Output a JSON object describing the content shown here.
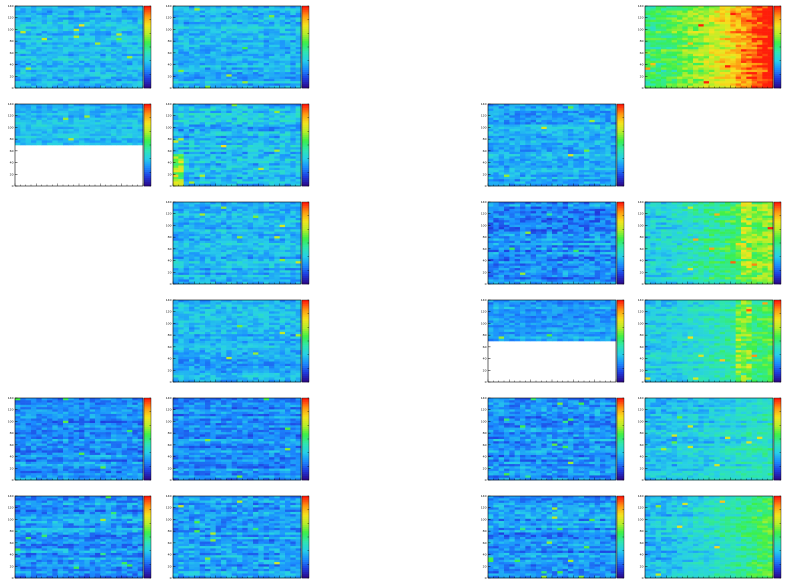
{
  "page": {
    "background": "#ffffff",
    "rows": 6,
    "cols": 5
  },
  "palette": {
    "stops": [
      "#2b0a8c",
      "#1f3de0",
      "#1a8cff",
      "#27cfe8",
      "#2ee6b0",
      "#3cf04a",
      "#b5ef2a",
      "#f5e31e",
      "#ff9a12",
      "#ff1e0a"
    ],
    "frame": "#000000",
    "empty_region": "#ffffff"
  },
  "chart_data": [
    {
      "id": "r0c0",
      "row": 0,
      "col": 0,
      "type": "heatmap",
      "nx": 24,
      "ny": 36,
      "ylim": [
        0,
        140
      ],
      "y_ticks": [
        0,
        20,
        40,
        60,
        80,
        100,
        120,
        140
      ],
      "intensity": {
        "base": 0.3,
        "spread": 0.1,
        "x_gradient": 0.0
      },
      "filled_y_fraction": 1.0,
      "seed": 3
    },
    {
      "id": "r0c1",
      "row": 0,
      "col": 1,
      "type": "heatmap",
      "nx": 24,
      "ny": 36,
      "ylim": [
        0,
        140
      ],
      "y_ticks": [
        0,
        20,
        40,
        60,
        80,
        100,
        120,
        140
      ],
      "intensity": {
        "base": 0.29,
        "spread": 0.1,
        "x_gradient": 0.0
      },
      "filled_y_fraction": 1.0,
      "seed": 7
    },
    {
      "id": "r0c4",
      "row": 0,
      "col": 4,
      "type": "heatmap",
      "nx": 24,
      "ny": 36,
      "ylim": [
        0,
        140
      ],
      "y_ticks": [
        0,
        20,
        40,
        60,
        80,
        100,
        120,
        140
      ],
      "intensity": {
        "base": 0.5,
        "spread": 0.12,
        "x_gradient": 0.55
      },
      "filled_y_fraction": 1.0,
      "seed": 11
    },
    {
      "id": "r1c0",
      "row": 1,
      "col": 0,
      "type": "heatmap",
      "nx": 24,
      "ny": 36,
      "ylim": [
        0,
        140
      ],
      "y_ticks": [
        0,
        20,
        40,
        60,
        80,
        100,
        120,
        140
      ],
      "intensity": {
        "base": 0.3,
        "spread": 0.08,
        "x_gradient": 0.0
      },
      "filled_y_fraction": 0.5,
      "seed": 13
    },
    {
      "id": "r1c1",
      "row": 1,
      "col": 1,
      "type": "heatmap",
      "nx": 24,
      "ny": 36,
      "ylim": [
        0,
        140
      ],
      "y_ticks": [
        0,
        20,
        40,
        60,
        80,
        100,
        120,
        140
      ],
      "intensity": {
        "base": 0.3,
        "spread": 0.12,
        "x_gradient": 0.0
      },
      "filled_y_fraction": 1.0,
      "hot_corner": "bottom-left",
      "seed": 17
    },
    {
      "id": "r1c3",
      "row": 1,
      "col": 3,
      "type": "heatmap",
      "nx": 24,
      "ny": 36,
      "ylim": [
        0,
        140
      ],
      "y_ticks": [
        0,
        20,
        40,
        60,
        80,
        100,
        120,
        140
      ],
      "intensity": {
        "base": 0.28,
        "spread": 0.1,
        "x_gradient": 0.0
      },
      "filled_y_fraction": 1.0,
      "seed": 19
    },
    {
      "id": "r2c1",
      "row": 2,
      "col": 1,
      "type": "heatmap",
      "nx": 24,
      "ny": 36,
      "ylim": [
        0,
        140
      ],
      "y_ticks": [
        0,
        20,
        40,
        60,
        80,
        100,
        120,
        140
      ],
      "intensity": {
        "base": 0.29,
        "spread": 0.1,
        "x_gradient": 0.0
      },
      "filled_y_fraction": 1.0,
      "seed": 23
    },
    {
      "id": "r2c3",
      "row": 2,
      "col": 3,
      "type": "heatmap",
      "nx": 24,
      "ny": 36,
      "ylim": [
        0,
        140
      ],
      "y_ticks": [
        0,
        20,
        40,
        60,
        80,
        100,
        120,
        140
      ],
      "intensity": {
        "base": 0.24,
        "spread": 0.12,
        "x_gradient": 0.0
      },
      "filled_y_fraction": 1.0,
      "seed": 29
    },
    {
      "id": "r2c4",
      "row": 2,
      "col": 4,
      "type": "heatmap",
      "nx": 24,
      "ny": 36,
      "ylim": [
        0,
        140
      ],
      "y_ticks": [
        0,
        20,
        40,
        60,
        80,
        100,
        120,
        140
      ],
      "intensity": {
        "base": 0.36,
        "spread": 0.12,
        "x_gradient": 0.3
      },
      "filled_y_fraction": 1.0,
      "hot_column": 0.8,
      "seed": 31
    },
    {
      "id": "r3c1",
      "row": 3,
      "col": 1,
      "type": "heatmap",
      "nx": 24,
      "ny": 36,
      "ylim": [
        0,
        140
      ],
      "y_ticks": [
        0,
        20,
        40,
        60,
        80,
        100,
        120,
        140
      ],
      "intensity": {
        "base": 0.29,
        "spread": 0.1,
        "x_gradient": 0.0
      },
      "filled_y_fraction": 1.0,
      "seed": 37
    },
    {
      "id": "r3c3",
      "row": 3,
      "col": 3,
      "type": "heatmap",
      "nx": 24,
      "ny": 36,
      "ylim": [
        0,
        140
      ],
      "y_ticks": [
        0,
        20,
        40,
        60,
        80,
        100,
        120,
        140
      ],
      "intensity": {
        "base": 0.26,
        "spread": 0.08,
        "x_gradient": 0.0
      },
      "filled_y_fraction": 0.5,
      "seed": 41
    },
    {
      "id": "r3c4",
      "row": 3,
      "col": 4,
      "type": "heatmap",
      "nx": 24,
      "ny": 36,
      "ylim": [
        0,
        140
      ],
      "y_ticks": [
        0,
        20,
        40,
        60,
        80,
        100,
        120,
        140
      ],
      "intensity": {
        "base": 0.34,
        "spread": 0.1,
        "x_gradient": 0.22
      },
      "filled_y_fraction": 1.0,
      "hot_column": 0.78,
      "seed": 43
    },
    {
      "id": "r4c0",
      "row": 4,
      "col": 0,
      "type": "heatmap",
      "nx": 24,
      "ny": 36,
      "ylim": [
        0,
        140
      ],
      "y_ticks": [
        0,
        20,
        40,
        60,
        80,
        100,
        120,
        140
      ],
      "intensity": {
        "base": 0.23,
        "spread": 0.1,
        "x_gradient": 0.0
      },
      "filled_y_fraction": 1.0,
      "seed": 47
    },
    {
      "id": "r4c1",
      "row": 4,
      "col": 1,
      "type": "heatmap",
      "nx": 24,
      "ny": 36,
      "ylim": [
        0,
        140
      ],
      "y_ticks": [
        0,
        20,
        40,
        60,
        80,
        100,
        120,
        140
      ],
      "intensity": {
        "base": 0.23,
        "spread": 0.1,
        "x_gradient": 0.0
      },
      "filled_y_fraction": 1.0,
      "seed": 53
    },
    {
      "id": "r4c3",
      "row": 4,
      "col": 3,
      "type": "heatmap",
      "nx": 24,
      "ny": 36,
      "ylim": [
        0,
        140
      ],
      "y_ticks": [
        0,
        20,
        40,
        60,
        80,
        100,
        120,
        140
      ],
      "intensity": {
        "base": 0.24,
        "spread": 0.11,
        "x_gradient": 0.0
      },
      "filled_y_fraction": 1.0,
      "seed": 59
    },
    {
      "id": "r4c4",
      "row": 4,
      "col": 4,
      "type": "heatmap",
      "nx": 24,
      "ny": 36,
      "ylim": [
        0,
        140
      ],
      "y_ticks": [
        0,
        20,
        40,
        60,
        80,
        100,
        120,
        140
      ],
      "intensity": {
        "base": 0.3,
        "spread": 0.1,
        "x_gradient": 0.12
      },
      "filled_y_fraction": 1.0,
      "seed": 61
    },
    {
      "id": "r5c0",
      "row": 5,
      "col": 0,
      "type": "heatmap",
      "nx": 24,
      "ny": 36,
      "ylim": [
        0,
        140
      ],
      "y_ticks": [
        0,
        20,
        40,
        60,
        80,
        100,
        120,
        140
      ],
      "intensity": {
        "base": 0.25,
        "spread": 0.11,
        "x_gradient": 0.0
      },
      "filled_y_fraction": 1.0,
      "seed": 67
    },
    {
      "id": "r5c1",
      "row": 5,
      "col": 1,
      "type": "heatmap",
      "nx": 24,
      "ny": 36,
      "ylim": [
        0,
        140
      ],
      "y_ticks": [
        0,
        20,
        40,
        60,
        80,
        100,
        120,
        140
      ],
      "intensity": {
        "base": 0.26,
        "spread": 0.11,
        "x_gradient": 0.0
      },
      "filled_y_fraction": 1.0,
      "seed": 71
    },
    {
      "id": "r5c3",
      "row": 5,
      "col": 3,
      "type": "heatmap",
      "nx": 24,
      "ny": 36,
      "ylim": [
        0,
        140
      ],
      "y_ticks": [
        0,
        20,
        40,
        60,
        80,
        100,
        120,
        140
      ],
      "intensity": {
        "base": 0.24,
        "spread": 0.11,
        "x_gradient": 0.0
      },
      "filled_y_fraction": 1.0,
      "seed": 73
    },
    {
      "id": "r5c4",
      "row": 5,
      "col": 4,
      "type": "heatmap",
      "nx": 24,
      "ny": 36,
      "ylim": [
        0,
        140
      ],
      "y_ticks": [
        0,
        20,
        40,
        60,
        80,
        100,
        120,
        140
      ],
      "intensity": {
        "base": 0.3,
        "spread": 0.1,
        "x_gradient": 0.26
      },
      "filled_y_fraction": 1.0,
      "seed": 79
    }
  ]
}
